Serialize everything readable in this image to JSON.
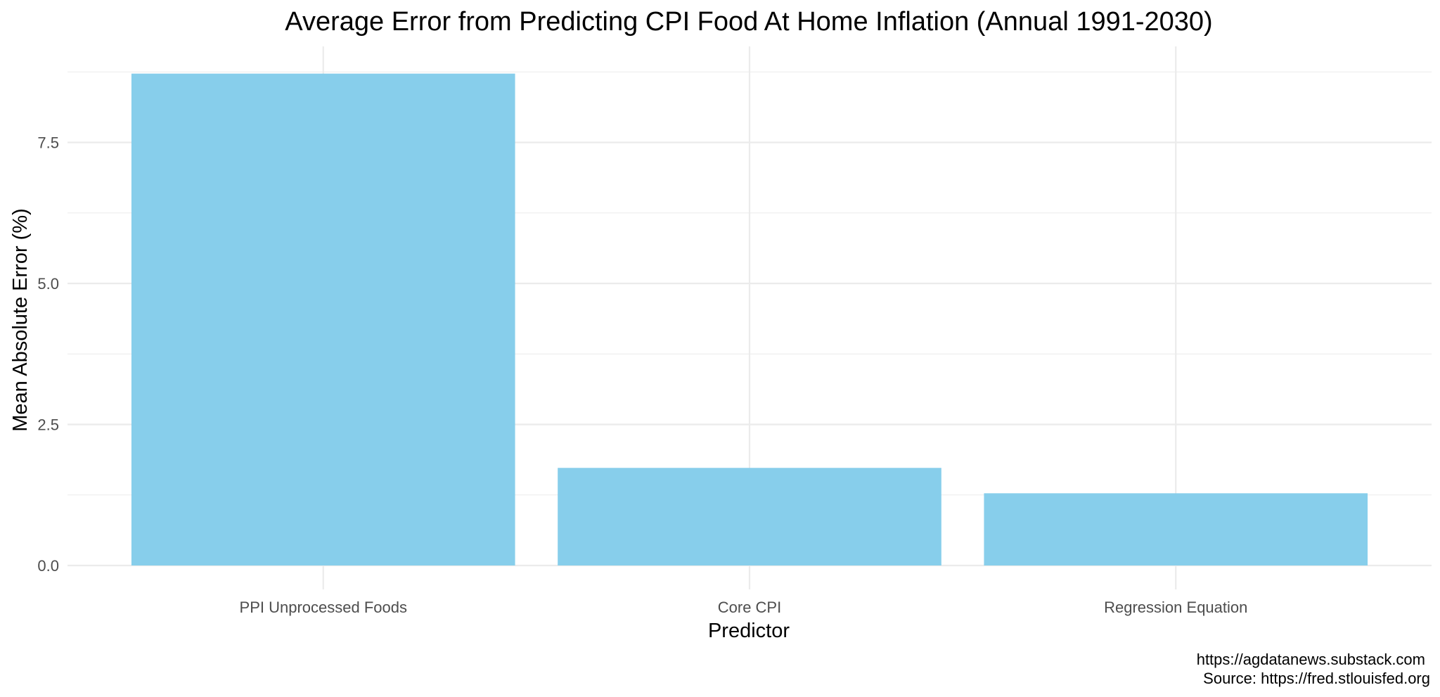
{
  "chart_data": {
    "type": "bar",
    "title": "Average Error from Predicting CPI Food At Home Inflation (Annual 1991-2030)",
    "xlabel": "Predictor",
    "ylabel": "Mean Absolute Error (%)",
    "categories": [
      "PPI Unprocessed Foods",
      "Core CPI",
      "Regression Equation"
    ],
    "values": [
      8.72,
      1.73,
      1.28
    ],
    "ylim": [
      0,
      8.8
    ],
    "yticks": [
      0.0,
      2.5,
      5.0,
      7.5
    ],
    "ytick_labels": [
      "0.0",
      "2.5",
      "5.0",
      "7.5"
    ],
    "bar_color": "#87CEEB",
    "grid": true,
    "legend": "none",
    "caption_lines": [
      "https://agdatanews.substack.com",
      "Source: https://fred.stlouisfed.org"
    ]
  }
}
